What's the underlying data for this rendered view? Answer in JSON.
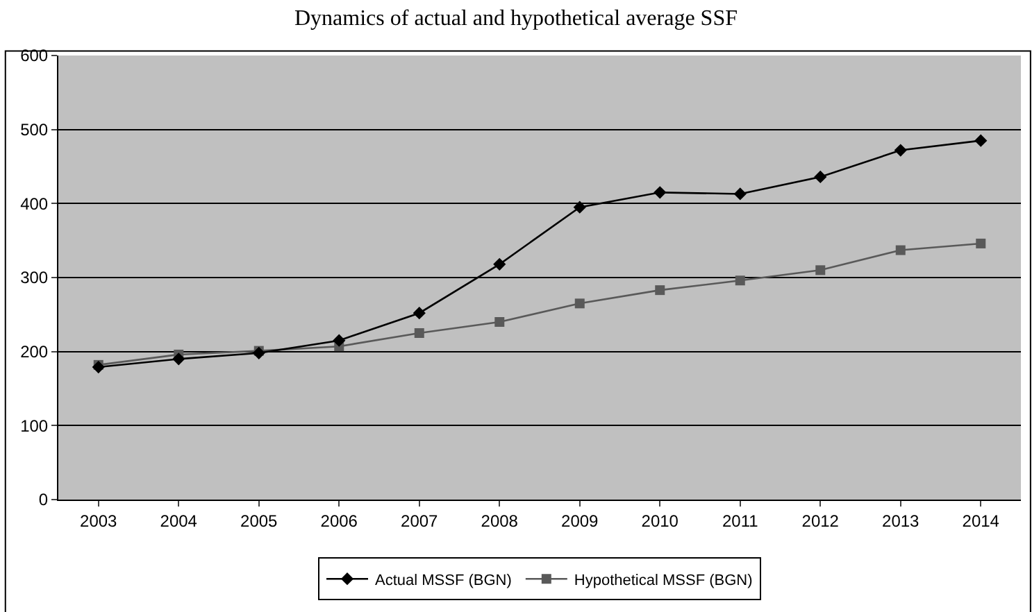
{
  "chart_data": {
    "type": "line",
    "title": "Dynamics of actual and hypothetical average SSF",
    "categories": [
      "2003",
      "2004",
      "2005",
      "2006",
      "2007",
      "2008",
      "2009",
      "2010",
      "2011",
      "2012",
      "2013",
      "2014"
    ],
    "series": [
      {
        "name": "Actual MSSF (BGN)",
        "color": "#000000",
        "marker": "diamond",
        "values": [
          179,
          190,
          198,
          215,
          252,
          318,
          395,
          415,
          413,
          436,
          472,
          485
        ]
      },
      {
        "name": "Hypothetical MSSF (BGN)",
        "color": "#595959",
        "marker": "square",
        "values": [
          182,
          196,
          201,
          207,
          225,
          240,
          265,
          283,
          296,
          310,
          337,
          346
        ]
      }
    ],
    "ylim": [
      0,
      600
    ],
    "yticks": [
      0,
      100,
      200,
      300,
      400,
      500,
      600
    ],
    "grid": "y",
    "legend": "bottom",
    "line_style": "solid"
  }
}
